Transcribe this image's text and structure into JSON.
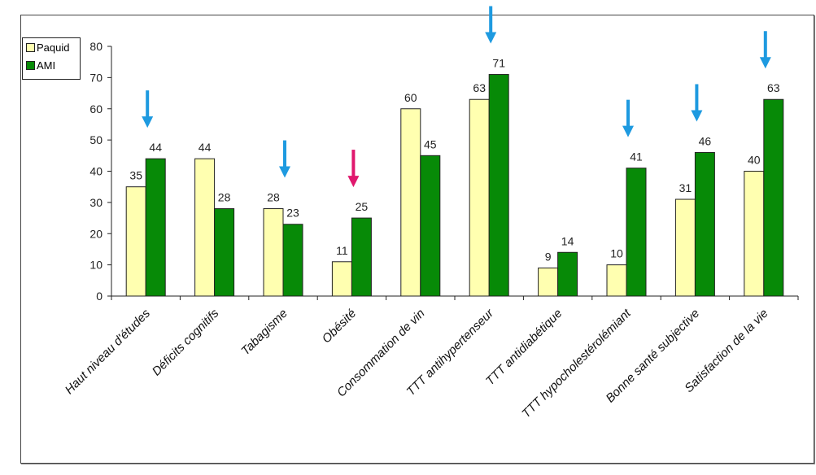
{
  "chart_data": {
    "type": "bar",
    "title": "",
    "xlabel": "",
    "ylabel": "",
    "ylim": [
      0,
      80
    ],
    "yticks": [
      0,
      10,
      20,
      30,
      40,
      50,
      60,
      70,
      80
    ],
    "grid": false,
    "legend_placement": "top-left",
    "categories": [
      "Haut  niveau d'études",
      "Déficits cognitifs",
      "Tabagisme",
      "Obésité",
      "Consommation de vin",
      "TTT antihypertenseur",
      "TTT antidiabétique",
      "TTT hypocholestérolémiant",
      "Bonne santé subjective",
      "Satisfaction de la vie"
    ],
    "series": [
      {
        "name": "Paquid",
        "color": "#FFFFB0",
        "values": [
          35,
          44,
          28,
          11,
          60,
          63,
          9,
          10,
          31,
          40
        ]
      },
      {
        "name": "AMI",
        "color": "#078A07",
        "values": [
          44,
          28,
          23,
          25,
          45,
          71,
          14,
          41,
          46,
          63
        ]
      }
    ],
    "annotations": [
      {
        "type": "arrow-down",
        "category_index": 0,
        "color": "#1E9AE0"
      },
      {
        "type": "arrow-down",
        "category_index": 2,
        "color": "#1E9AE0"
      },
      {
        "type": "arrow-down",
        "category_index": 3,
        "color": "#E0186E"
      },
      {
        "type": "arrow-down",
        "category_index": 5,
        "color": "#1E9AE0"
      },
      {
        "type": "arrow-down",
        "category_index": 7,
        "color": "#1E9AE0"
      },
      {
        "type": "arrow-down",
        "category_index": 8,
        "color": "#1E9AE0"
      },
      {
        "type": "arrow-down",
        "category_index": 9,
        "color": "#1E9AE0"
      }
    ]
  }
}
